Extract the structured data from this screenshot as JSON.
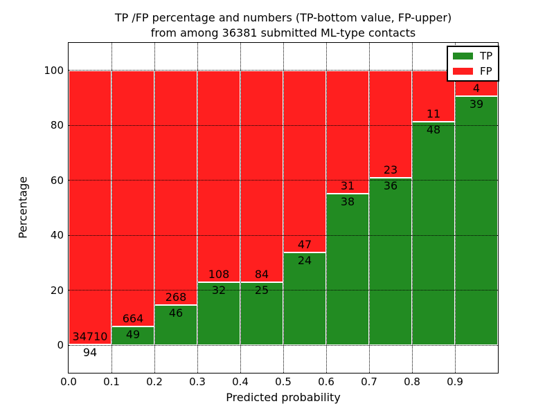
{
  "figure": {
    "title_line1": "TP /FP percentage and numbers (TP-bottom value, FP-upper)",
    "title_line2": "from among 36381 submitted ML-type contacts"
  },
  "chart_data": {
    "type": "bar",
    "stacked": true,
    "normalized_to_percent": true,
    "title": "TP /FP percentage and numbers (TP-bottom value, FP-upper) from among 36381 submitted ML-type contacts",
    "total_contacts": 36381,
    "xlabel": "Predicted probability",
    "ylabel": "Percentage",
    "xlim": [
      0.0,
      1.0
    ],
    "ylim": [
      -10,
      110
    ],
    "grid": true,
    "bin_width": 0.1,
    "bin_starts": [
      0.0,
      0.1,
      0.2,
      0.3,
      0.4,
      0.5,
      0.6,
      0.7,
      0.8,
      0.9
    ],
    "xtick_labels": [
      "0.0",
      "0.1",
      "0.2",
      "0.3",
      "0.4",
      "0.5",
      "0.6",
      "0.7",
      "0.8",
      "0.9"
    ],
    "ytick_values": [
      0,
      20,
      40,
      60,
      80,
      100
    ],
    "series": [
      {
        "name": "TP",
        "color": "#228b22",
        "counts": [
          94,
          49,
          46,
          32,
          25,
          24,
          38,
          36,
          48,
          39
        ]
      },
      {
        "name": "FP",
        "color": "#ff1f1f",
        "counts": [
          34710,
          664,
          268,
          108,
          84,
          47,
          31,
          23,
          11,
          4
        ]
      }
    ],
    "legend": {
      "position": "upper right",
      "entries": [
        {
          "label": "TP",
          "color": "#228b22"
        },
        {
          "label": "FP",
          "color": "#ff1f1f"
        }
      ]
    }
  }
}
